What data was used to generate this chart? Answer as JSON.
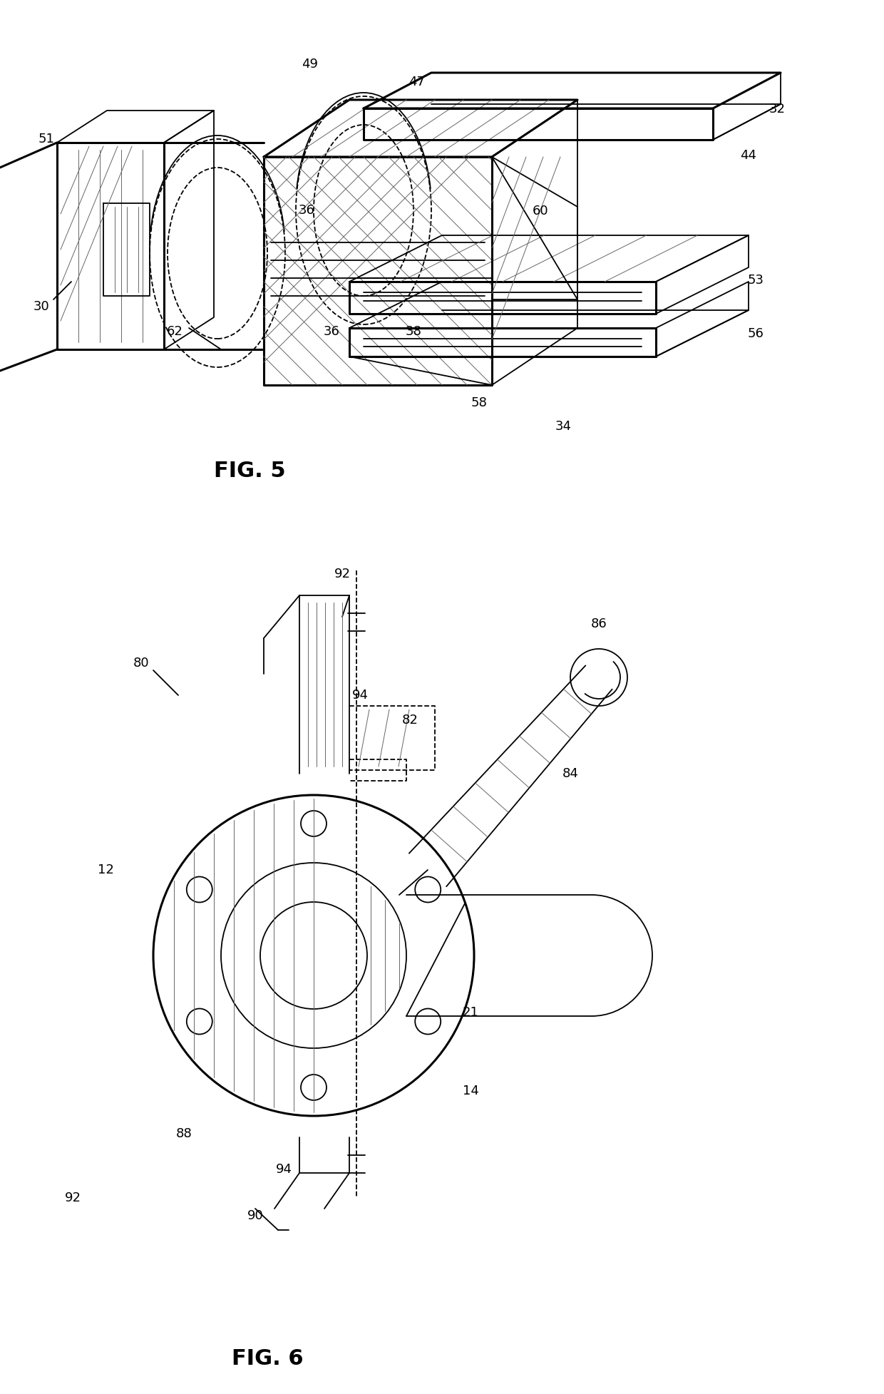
{
  "bg_color": "#ffffff",
  "lw": 1.8,
  "lw_thin": 0.7,
  "lw_thick": 2.2,
  "lw_med": 1.3,
  "black": "#000000",
  "gray": "#666666",
  "lgray": "#aaaaaa"
}
